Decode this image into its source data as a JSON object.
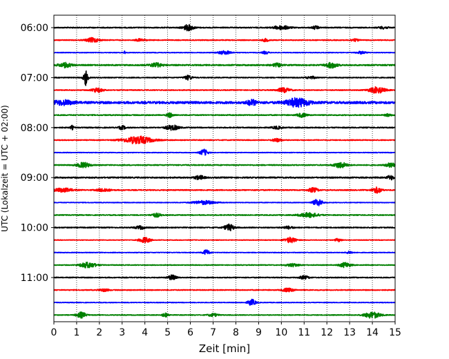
{
  "chart_data": {
    "type": "line",
    "subtype": "helicorder",
    "title": "",
    "xlabel": "Zeit  [min]",
    "ylabel": "UTC (Lokalzeit = UTC + 02:00)",
    "xlim": [
      0,
      15
    ],
    "x_ticks": [
      "0",
      "1",
      "2",
      "3",
      "4",
      "5",
      "6",
      "7",
      "8",
      "9",
      "10",
      "11",
      "12",
      "13",
      "14",
      "15"
    ],
    "y_ticks": [
      "06:00",
      "07:00",
      "08:00",
      "09:00",
      "10:00",
      "11:00"
    ],
    "y_tick_rows": [
      0,
      4,
      8,
      12,
      16,
      20
    ],
    "grid": "vertical dotted at each minute",
    "trace_colors": [
      "#000000",
      "#ff0000",
      "#0000ff",
      "#008000"
    ],
    "line_start_times": [
      "06:00",
      "06:15",
      "06:30",
      "06:45",
      "07:00",
      "07:15",
      "07:30",
      "07:45",
      "08:00",
      "08:15",
      "08:30",
      "08:45",
      "09:00",
      "09:15",
      "09:30",
      "09:45",
      "10:00",
      "10:15",
      "10:30",
      "10:45",
      "11:00",
      "11:15",
      "11:30",
      "11:45"
    ],
    "base_noise": [
      0.08,
      0.07,
      0.05,
      0.1,
      0.07,
      0.07,
      0.18,
      0.08,
      0.08,
      0.07,
      0.05,
      0.08,
      0.1,
      0.08,
      0.05,
      0.07,
      0.08,
      0.05,
      0.05,
      0.06,
      0.07,
      0.07,
      0.05,
      0.06
    ],
    "events": [
      [
        {
          "t": 5.9,
          "a": 0.45,
          "w": 0.35
        },
        {
          "t": 10.0,
          "a": 0.3,
          "w": 0.5
        },
        {
          "t": 11.5,
          "a": 0.25,
          "w": 0.2
        },
        {
          "t": 14.5,
          "a": 0.18,
          "w": 0.3
        }
      ],
      [
        {
          "t": 1.7,
          "a": 0.35,
          "w": 0.4
        },
        {
          "t": 3.8,
          "a": 0.2,
          "w": 0.3
        },
        {
          "t": 9.3,
          "a": 0.22,
          "w": 0.2
        },
        {
          "t": 13.2,
          "a": 0.2,
          "w": 0.25
        }
      ],
      [
        {
          "t": 3.1,
          "a": 0.3,
          "w": 0.05
        },
        {
          "t": 7.5,
          "a": 0.3,
          "w": 0.4
        },
        {
          "t": 9.3,
          "a": 0.22,
          "w": 0.2
        },
        {
          "t": 13.5,
          "a": 0.2,
          "w": 0.3
        }
      ],
      [
        {
          "t": 0.5,
          "a": 0.35,
          "w": 0.4
        },
        {
          "t": 4.5,
          "a": 0.3,
          "w": 0.4
        },
        {
          "t": 9.8,
          "a": 0.25,
          "w": 0.3
        },
        {
          "t": 12.2,
          "a": 0.45,
          "w": 0.35
        }
      ],
      [
        {
          "t": 1.4,
          "a": 0.9,
          "w": 0.04
        },
        {
          "t": 1.4,
          "a": 0.8,
          "w": 0.15
        },
        {
          "t": 5.9,
          "a": 0.35,
          "w": 0.25
        },
        {
          "t": 11.3,
          "a": 0.2,
          "w": 0.3
        }
      ],
      [
        {
          "t": 1.9,
          "a": 0.35,
          "w": 0.35
        },
        {
          "t": 10.1,
          "a": 0.35,
          "w": 0.4
        },
        {
          "t": 14.2,
          "a": 0.5,
          "w": 0.5
        }
      ],
      [
        {
          "t": 0.4,
          "a": 0.35,
          "w": 0.6
        },
        {
          "t": 8.7,
          "a": 0.4,
          "w": 0.3
        },
        {
          "t": 10.7,
          "a": 0.65,
          "w": 0.7
        }
      ],
      [
        {
          "t": 5.1,
          "a": 0.35,
          "w": 0.2
        },
        {
          "t": 10.9,
          "a": 0.3,
          "w": 0.3
        },
        {
          "t": 14.7,
          "a": 0.2,
          "w": 0.2
        }
      ],
      [
        {
          "t": 0.8,
          "a": 0.3,
          "w": 0.1
        },
        {
          "t": 3.0,
          "a": 0.3,
          "w": 0.2
        },
        {
          "t": 5.2,
          "a": 0.4,
          "w": 0.4
        },
        {
          "t": 9.8,
          "a": 0.2,
          "w": 0.3
        }
      ],
      [
        {
          "t": 3.7,
          "a": 0.6,
          "w": 0.9
        },
        {
          "t": 9.8,
          "a": 0.25,
          "w": 0.3
        }
      ],
      [
        {
          "t": 6.6,
          "a": 0.5,
          "w": 0.25
        }
      ],
      [
        {
          "t": 1.3,
          "a": 0.4,
          "w": 0.4
        },
        {
          "t": 12.6,
          "a": 0.45,
          "w": 0.4
        },
        {
          "t": 14.8,
          "a": 0.35,
          "w": 0.3
        }
      ],
      [
        {
          "t": 6.4,
          "a": 0.3,
          "w": 0.3
        },
        {
          "t": 14.8,
          "a": 0.35,
          "w": 0.2
        }
      ],
      [
        {
          "t": 0.4,
          "a": 0.3,
          "w": 0.6
        },
        {
          "t": 2.2,
          "a": 0.25,
          "w": 0.4
        },
        {
          "t": 11.4,
          "a": 0.35,
          "w": 0.3
        },
        {
          "t": 14.2,
          "a": 0.45,
          "w": 0.3
        }
      ],
      [
        {
          "t": 6.6,
          "a": 0.3,
          "w": 0.7
        },
        {
          "t": 11.6,
          "a": 0.55,
          "w": 0.3
        }
      ],
      [
        {
          "t": 4.5,
          "a": 0.3,
          "w": 0.3
        },
        {
          "t": 11.2,
          "a": 0.35,
          "w": 0.6
        }
      ],
      [
        {
          "t": 3.8,
          "a": 0.25,
          "w": 0.3
        },
        {
          "t": 7.7,
          "a": 0.5,
          "w": 0.3
        },
        {
          "t": 10.3,
          "a": 0.2,
          "w": 0.3
        }
      ],
      [
        {
          "t": 4.0,
          "a": 0.45,
          "w": 0.35
        },
        {
          "t": 10.4,
          "a": 0.45,
          "w": 0.35
        },
        {
          "t": 12.5,
          "a": 0.25,
          "w": 0.2
        }
      ],
      [
        {
          "t": 6.7,
          "a": 0.45,
          "w": 0.2
        },
        {
          "t": 13.0,
          "a": 0.2,
          "w": 0.2
        }
      ],
      [
        {
          "t": 1.5,
          "a": 0.45,
          "w": 0.5
        },
        {
          "t": 10.5,
          "a": 0.25,
          "w": 0.4
        },
        {
          "t": 12.8,
          "a": 0.4,
          "w": 0.35
        }
      ],
      [
        {
          "t": 5.2,
          "a": 0.4,
          "w": 0.25
        },
        {
          "t": 11.0,
          "a": 0.25,
          "w": 0.3
        }
      ],
      [
        {
          "t": 2.2,
          "a": 0.2,
          "w": 0.3
        },
        {
          "t": 10.3,
          "a": 0.3,
          "w": 0.35
        }
      ],
      [
        {
          "t": 8.7,
          "a": 0.5,
          "w": 0.25
        }
      ],
      [
        {
          "t": 1.2,
          "a": 0.45,
          "w": 0.3
        },
        {
          "t": 4.9,
          "a": 0.3,
          "w": 0.2
        },
        {
          "t": 7.0,
          "a": 0.25,
          "w": 0.3
        },
        {
          "t": 14.0,
          "a": 0.5,
          "w": 0.5
        }
      ]
    ]
  }
}
